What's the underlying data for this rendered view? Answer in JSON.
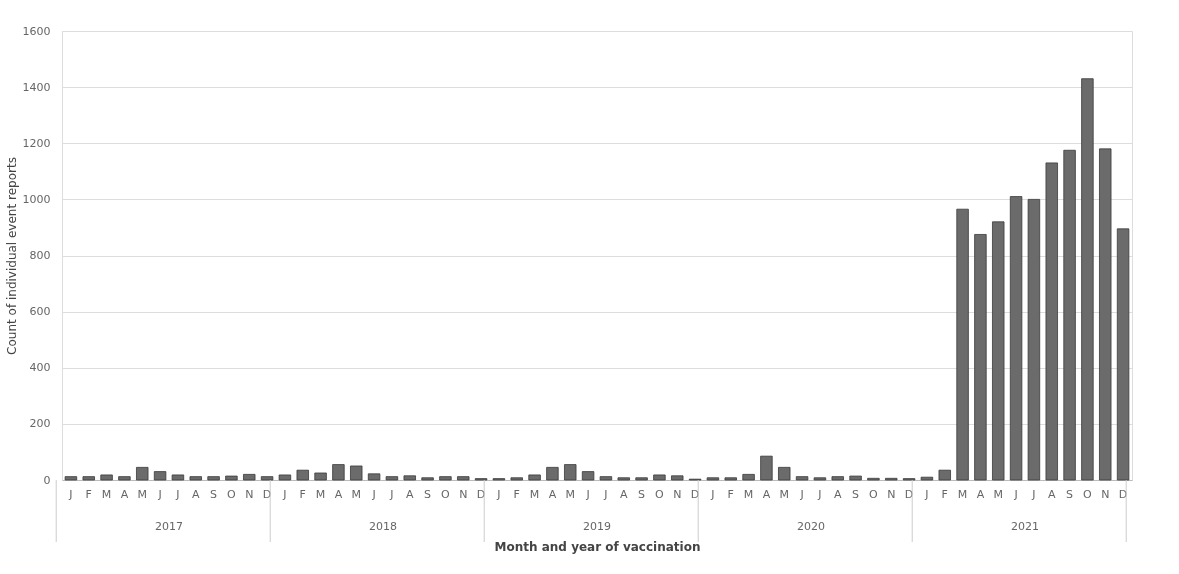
{
  "chart_data": {
    "type": "bar",
    "xlabel": "Month and year of vaccination",
    "ylabel": "Count of individual event reports",
    "categories": [
      "J",
      "F",
      "M",
      "A",
      "M",
      "J",
      "J",
      "A",
      "S",
      "O",
      "N",
      "D",
      "J",
      "F",
      "M",
      "A",
      "M",
      "J",
      "J",
      "A",
      "S",
      "O",
      "N",
      "D",
      "J",
      "F",
      "M",
      "A",
      "M",
      "J",
      "J",
      "A",
      "S",
      "O",
      "N",
      "D",
      "J",
      "F",
      "M",
      "A",
      "M",
      "J",
      "J",
      "A",
      "S",
      "O",
      "N",
      "D",
      "J",
      "F",
      "M",
      "A",
      "M",
      "J",
      "J",
      "A",
      "S",
      "O",
      "N",
      "D"
    ],
    "values": [
      12,
      12,
      18,
      12,
      45,
      30,
      18,
      12,
      12,
      14,
      20,
      12,
      18,
      35,
      25,
      55,
      50,
      22,
      12,
      15,
      8,
      12,
      12,
      5,
      5,
      8,
      18,
      45,
      55,
      30,
      12,
      8,
      8,
      18,
      15,
      3,
      8,
      8,
      20,
      85,
      45,
      12,
      8,
      12,
      14,
      6,
      6,
      5,
      10,
      35,
      965,
      875,
      920,
      1010,
      1000,
      1130,
      1175,
      1430,
      1180,
      895
    ],
    "color": "#6b6b6b",
    "ylim": [
      0,
      1600
    ],
    "yticks": [
      0,
      200,
      400,
      600,
      800,
      1000,
      1200,
      1400,
      1600
    ],
    "grid": "y",
    "annotations": [
      "2017",
      "2018",
      "2019",
      "2020",
      "2021"
    ]
  }
}
